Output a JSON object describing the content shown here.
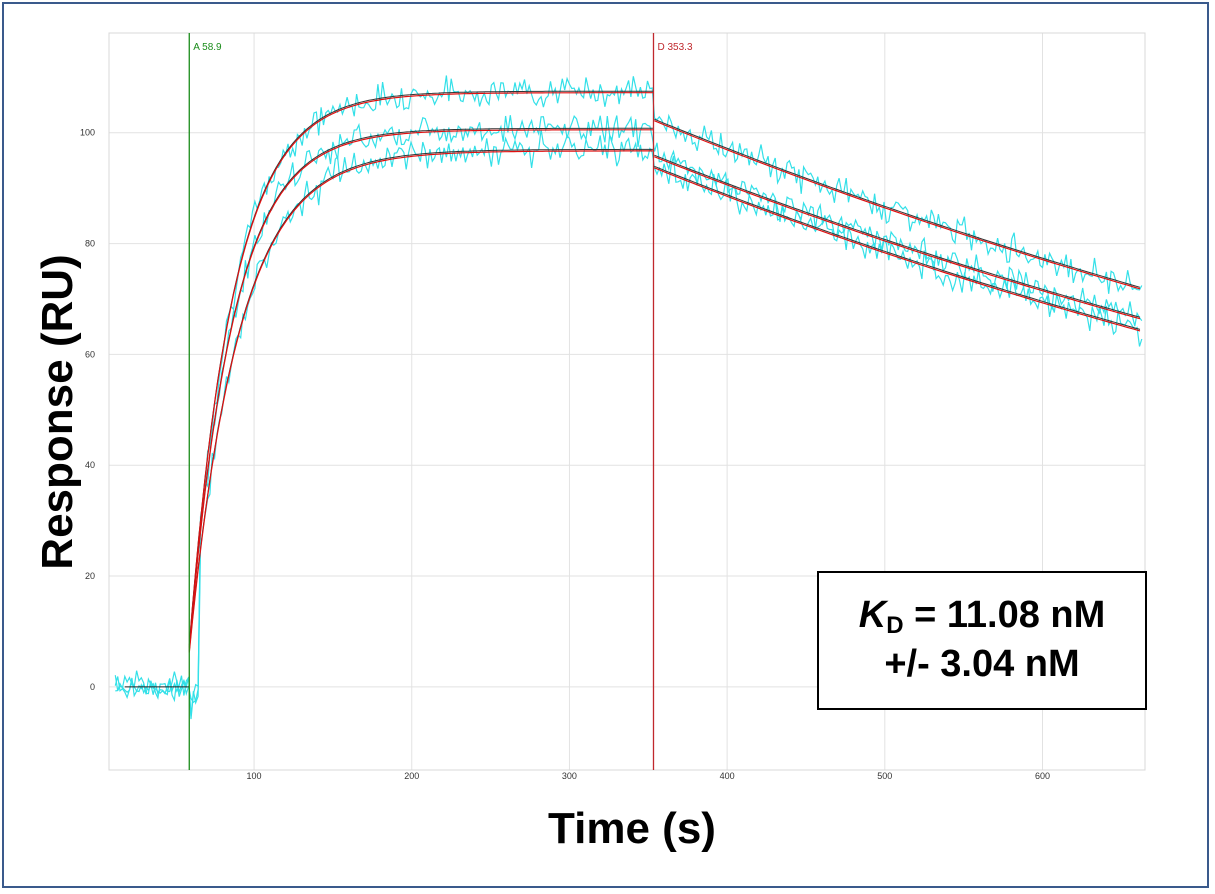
{
  "chart_data": {
    "type": "line",
    "title": "",
    "xlabel": "Time (s)",
    "ylabel": "Response (RU)",
    "xlim": [
      8,
      665
    ],
    "ylim": [
      -15,
      118
    ],
    "x_ticks": [
      100,
      200,
      300,
      400,
      500,
      600
    ],
    "y_ticks": [
      0,
      20,
      40,
      60,
      80,
      100
    ],
    "grid": true,
    "markers": [
      {
        "label": "A 58.9",
        "x": 58.9,
        "color": "#1a8c1a"
      },
      {
        "label": "D 353.3",
        "x": 353.3,
        "color": "#c0282d"
      }
    ],
    "colors": {
      "data": "#33e0e8",
      "fit": "#e01010",
      "fit_overlay": "#333333",
      "grid": "#e2e2e2"
    },
    "fit_model": {
      "t_start": 58.9,
      "t_dissociation": 353.3,
      "t_end": 663,
      "curves": [
        {
          "r0": 7.5,
          "rmax": 107.5,
          "k_on": 0.036,
          "r_diss": 102.5,
          "k_off": 0.00114
        },
        {
          "r0": 7.0,
          "rmax": 100.8,
          "k_on": 0.036,
          "r_diss": 96.0,
          "k_off": 0.00118
        },
        {
          "r0": 6.5,
          "rmax": 97.0,
          "k_on": 0.032,
          "r_diss": 94.0,
          "k_off": 0.00122
        }
      ]
    },
    "annotation": {
      "k": "K",
      "sub": "D",
      "line1_rest": " = 11.08 nM",
      "line2": "+/- 3.04 nM"
    }
  }
}
